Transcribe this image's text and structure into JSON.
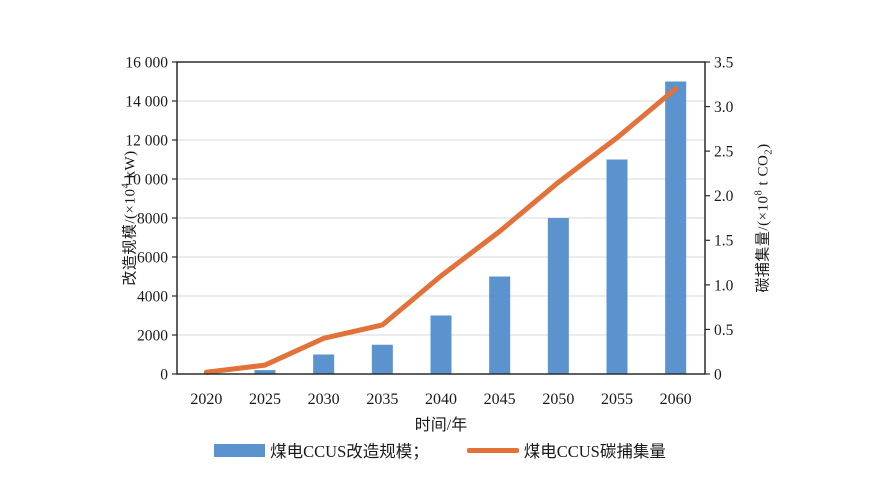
{
  "chart_data": {
    "type": "bar",
    "categories": [
      "2020",
      "2025",
      "2030",
      "2035",
      "2040",
      "2045",
      "2050",
      "2055",
      "2060"
    ],
    "series": [
      {
        "name": "煤电CCUS改造规模",
        "type": "bar",
        "axis": "left",
        "color": "#5B93CE",
        "values": [
          0,
          200,
          1000,
          1500,
          3000,
          5000,
          8000,
          11000,
          15000
        ]
      },
      {
        "name": "煤电CCUS碳捕集量",
        "type": "line",
        "axis": "right",
        "color": "#E2713A",
        "values": [
          0.02,
          0.1,
          0.4,
          0.55,
          1.1,
          1.6,
          2.15,
          2.65,
          3.2
        ]
      }
    ],
    "xlabel": "时间/年",
    "ylabel_left": "改造规模/(×10⁴ kW)",
    "ylabel_right": "碳捕集量/(×10⁸ t CO₂)",
    "axes": {
      "left": {
        "min": 0,
        "max": 16000,
        "step": 2000,
        "tick_labels": [
          "0",
          "2000",
          "4000",
          "6000",
          "8000",
          "10 000",
          "12 000",
          "14 000",
          "16 000"
        ]
      },
      "right": {
        "min": 0,
        "max": 3.5,
        "step": 0.5,
        "tick_labels": [
          "0",
          "0.5",
          "1.0",
          "1.5",
          "2.0",
          "2.5",
          "3.0",
          "3.5"
        ]
      }
    },
    "grid": true,
    "legend_position": "bottom"
  },
  "axis_titles": {
    "left": {
      "pre": "改造规模/(×10",
      "sup": "4",
      "post": " kW)"
    },
    "right": {
      "pre": "碳捕集量/(×10",
      "sup": "8",
      "mid": " t CO",
      "sub": "2",
      "post": ")"
    },
    "x": "时间/年"
  },
  "legend": {
    "items": [
      {
        "label": "煤电CCUS改造规模；",
        "swatch": "bar",
        "color": "#5B93CE"
      },
      {
        "label": "煤电CCUS碳捕集量",
        "swatch": "line",
        "color": "#E2713A"
      }
    ]
  },
  "colors": {
    "grid": "#D8D8D8",
    "axis": "#2B2B2B",
    "text": "#1A1A1A"
  }
}
